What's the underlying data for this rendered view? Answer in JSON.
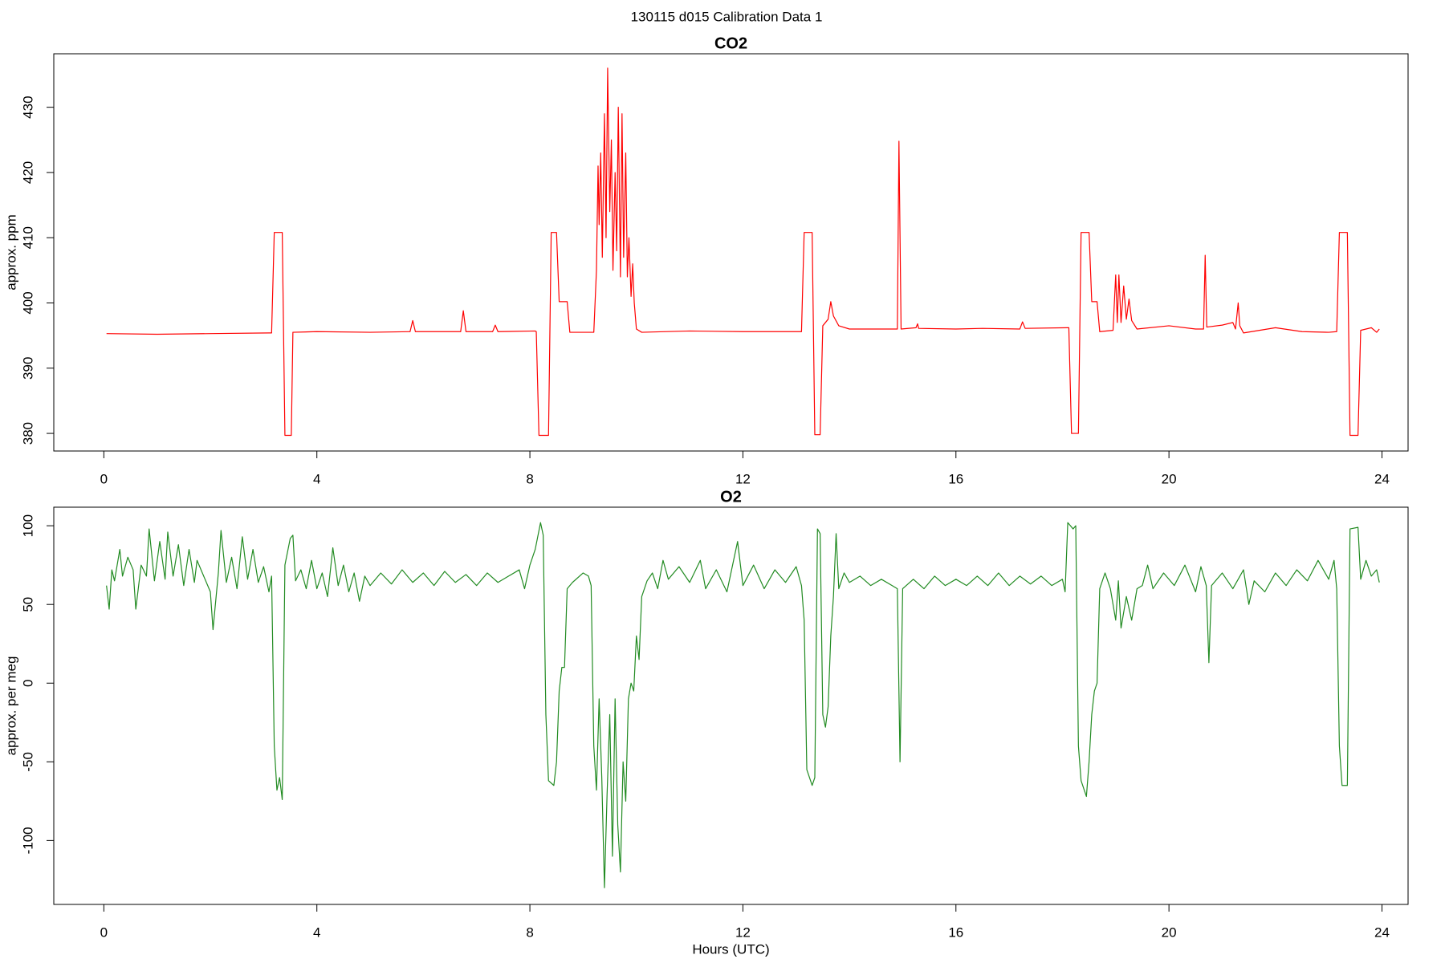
{
  "title": "130115   d015   Calibration Data 1",
  "chart_data": [
    {
      "type": "line",
      "title": "CO2",
      "ylabel": "approx. ppm",
      "xlim": [
        -0.94,
        24.49
      ],
      "xticks": [
        0,
        4,
        8,
        12,
        16,
        20,
        24
      ],
      "ylim": [
        377.3,
        438.2
      ],
      "yticks": [
        380,
        390,
        400,
        410,
        420,
        430
      ],
      "color": "#ff0000",
      "x": [
        0.05,
        1,
        2,
        3.1,
        3.15,
        3.2,
        3.3,
        3.35,
        3.4,
        3.5,
        3.52,
        3.55,
        4,
        5,
        5.75,
        5.8,
        5.85,
        6.7,
        6.75,
        6.8,
        7.3,
        7.35,
        7.4,
        8.1,
        8.12,
        8.17,
        8.35,
        8.4,
        8.5,
        8.55,
        8.7,
        8.75,
        9.2,
        9.25,
        9.28,
        9.3,
        9.33,
        9.36,
        9.4,
        9.43,
        9.46,
        9.5,
        9.53,
        9.56,
        9.6,
        9.63,
        9.66,
        9.7,
        9.73,
        9.76,
        9.8,
        9.83,
        9.86,
        9.9,
        9.93,
        9.96,
        10,
        10.1,
        11,
        12,
        13,
        13.1,
        13.15,
        13.3,
        13.35,
        13.45,
        13.5,
        13.6,
        13.65,
        13.7,
        13.8,
        14,
        14.9,
        14.93,
        14.97,
        15.25,
        15.28,
        15.3,
        16,
        16.5,
        17.2,
        17.25,
        17.3,
        18.1,
        18.12,
        18.17,
        18.3,
        18.35,
        18.5,
        18.55,
        18.65,
        18.7,
        18.95,
        19,
        19.03,
        19.06,
        19.1,
        19.15,
        19.2,
        19.25,
        19.3,
        19.4,
        20,
        20.5,
        20.65,
        20.68,
        20.71,
        21,
        21.2,
        21.25,
        21.3,
        21.33,
        21.4,
        22,
        22.5,
        23,
        23.15,
        23.2,
        23.35,
        23.4,
        23.55,
        23.6,
        23.8,
        23.9,
        23.95
      ],
      "values": [
        395.3,
        395.2,
        395.3,
        395.4,
        395.4,
        410.8,
        410.8,
        410.8,
        379.7,
        379.7,
        379.7,
        395.5,
        395.6,
        395.5,
        395.6,
        397.3,
        395.6,
        395.6,
        398.8,
        395.6,
        395.6,
        396.6,
        395.6,
        395.7,
        395.6,
        379.7,
        379.7,
        410.8,
        410.8,
        400.2,
        400.2,
        395.5,
        395.5,
        405,
        421,
        412,
        423,
        407,
        429,
        410,
        436,
        414,
        425,
        405,
        420,
        408,
        430,
        404,
        429,
        407,
        423,
        404,
        410,
        401,
        406,
        400,
        396,
        395.5,
        395.7,
        395.6,
        395.6,
        395.6,
        410.8,
        410.8,
        379.8,
        379.8,
        396.5,
        397.5,
        400.2,
        398,
        396.5,
        396,
        396,
        424.8,
        396,
        396.2,
        396.8,
        396.1,
        396,
        396.1,
        396,
        397.1,
        396.1,
        396.2,
        396.2,
        380,
        380,
        410.8,
        410.8,
        400.2,
        400.2,
        395.6,
        395.8,
        404.3,
        397,
        404.3,
        397,
        402.6,
        397.5,
        400.6,
        397.3,
        396,
        396.5,
        396,
        396,
        407.3,
        396.3,
        396.6,
        397,
        396,
        400,
        396.5,
        395.4,
        396.2,
        395.6,
        395.5,
        395.6,
        410.8,
        410.8,
        379.7,
        379.7,
        395.8,
        396.2,
        395.5,
        396
      ]
    },
    {
      "type": "line",
      "title": "O2",
      "ylabel": "approx. per meg",
      "xlabel": "Hours (UTC)",
      "xlim": [
        -0.94,
        24.49
      ],
      "xticks": [
        0,
        4,
        8,
        12,
        16,
        20,
        24
      ],
      "ylim": [
        -140.6,
        111.8
      ],
      "yticks": [
        -100,
        -50,
        0,
        50,
        100
      ],
      "color": "#228b22",
      "x": [
        0.05,
        0.1,
        0.15,
        0.2,
        0.3,
        0.35,
        0.45,
        0.55,
        0.6,
        0.7,
        0.8,
        0.85,
        0.95,
        1.05,
        1.15,
        1.2,
        1.3,
        1.4,
        1.5,
        1.6,
        1.7,
        1.75,
        1.85,
        1.95,
        2.0,
        2.05,
        2.15,
        2.2,
        2.3,
        2.4,
        2.5,
        2.6,
        2.7,
        2.8,
        2.9,
        3.0,
        3.1,
        3.15,
        3.2,
        3.25,
        3.3,
        3.35,
        3.4,
        3.5,
        3.55,
        3.6,
        3.7,
        3.8,
        3.9,
        4.0,
        4.1,
        4.2,
        4.3,
        4.4,
        4.5,
        4.6,
        4.7,
        4.8,
        4.9,
        5.0,
        5.2,
        5.4,
        5.6,
        5.8,
        6.0,
        6.2,
        6.4,
        6.6,
        6.8,
        7.0,
        7.2,
        7.4,
        7.6,
        7.8,
        7.9,
        8.0,
        8.1,
        8.2,
        8.25,
        8.3,
        8.35,
        8.45,
        8.5,
        8.55,
        8.6,
        8.65,
        8.7,
        8.8,
        9.0,
        9.1,
        9.15,
        9.2,
        9.25,
        9.3,
        9.35,
        9.4,
        9.45,
        9.5,
        9.55,
        9.6,
        9.65,
        9.7,
        9.75,
        9.8,
        9.85,
        9.9,
        9.95,
        10.0,
        10.05,
        10.1,
        10.2,
        10.3,
        10.4,
        10.5,
        10.6,
        10.8,
        11.0,
        11.2,
        11.3,
        11.5,
        11.7,
        11.9,
        12.0,
        12.2,
        12.4,
        12.6,
        12.8,
        13.0,
        13.1,
        13.15,
        13.2,
        13.3,
        13.35,
        13.4,
        13.45,
        13.5,
        13.55,
        13.6,
        13.65,
        13.7,
        13.75,
        13.8,
        13.9,
        14.0,
        14.2,
        14.4,
        14.6,
        14.8,
        14.9,
        14.95,
        15.0,
        15.2,
        15.4,
        15.6,
        15.8,
        16.0,
        16.2,
        16.4,
        16.6,
        16.8,
        17.0,
        17.2,
        17.4,
        17.6,
        17.8,
        18.0,
        18.05,
        18.1,
        18.2,
        18.25,
        18.3,
        18.35,
        18.45,
        18.5,
        18.55,
        18.6,
        18.65,
        18.7,
        18.8,
        18.9,
        19.0,
        19.05,
        19.1,
        19.2,
        19.3,
        19.4,
        19.5,
        19.6,
        19.7,
        19.9,
        20.1,
        20.3,
        20.5,
        20.6,
        20.7,
        20.75,
        20.8,
        21.0,
        21.2,
        21.4,
        21.5,
        21.6,
        21.8,
        22.0,
        22.2,
        22.4,
        22.6,
        22.8,
        23.0,
        23.1,
        23.15,
        23.2,
        23.25,
        23.35,
        23.4,
        23.55,
        23.6,
        23.7,
        23.8,
        23.9,
        23.95
      ],
      "values": [
        62,
        47,
        72,
        65,
        85,
        68,
        80,
        72,
        47,
        75,
        68,
        98,
        65,
        90,
        66,
        96,
        68,
        88,
        62,
        85,
        64,
        78,
        70,
        62,
        58,
        34,
        70,
        97,
        64,
        80,
        60,
        93,
        66,
        85,
        64,
        74,
        58,
        68,
        -40,
        -68,
        -60,
        -74,
        75,
        92,
        94,
        65,
        72,
        60,
        78,
        60,
        70,
        55,
        86,
        62,
        75,
        58,
        70,
        52,
        68,
        62,
        70,
        63,
        72,
        64,
        70,
        62,
        71,
        64,
        69,
        62,
        70,
        64,
        68,
        72,
        60,
        75,
        85,
        102,
        94,
        -20,
        -62,
        -65,
        -50,
        -5,
        10,
        10,
        60,
        64,
        70,
        68,
        62,
        -40,
        -68,
        -10,
        -60,
        -130,
        -70,
        -20,
        -110,
        -10,
        -90,
        -120,
        -50,
        -75,
        -10,
        0,
        -5,
        30,
        15,
        55,
        65,
        70,
        60,
        78,
        66,
        74,
        64,
        78,
        60,
        72,
        58,
        90,
        62,
        75,
        60,
        72,
        64,
        74,
        62,
        40,
        -55,
        -65,
        -60,
        98,
        95,
        -20,
        -28,
        -15,
        30,
        55,
        95,
        60,
        70,
        64,
        68,
        62,
        66,
        62,
        60,
        -50,
        60,
        66,
        60,
        68,
        62,
        66,
        62,
        68,
        62,
        70,
        62,
        68,
        63,
        68,
        62,
        66,
        58,
        102,
        98,
        100,
        -40,
        -62,
        -72,
        -50,
        -20,
        -5,
        0,
        60,
        70,
        60,
        40,
        65,
        35,
        55,
        40,
        60,
        62,
        75,
        60,
        70,
        62,
        75,
        58,
        74,
        62,
        13,
        62,
        70,
        60,
        72,
        50,
        65,
        58,
        70,
        62,
        72,
        65,
        78,
        66,
        78,
        60,
        -40,
        -65,
        -65,
        98,
        99,
        66,
        78,
        68,
        72,
        64
      ]
    }
  ]
}
